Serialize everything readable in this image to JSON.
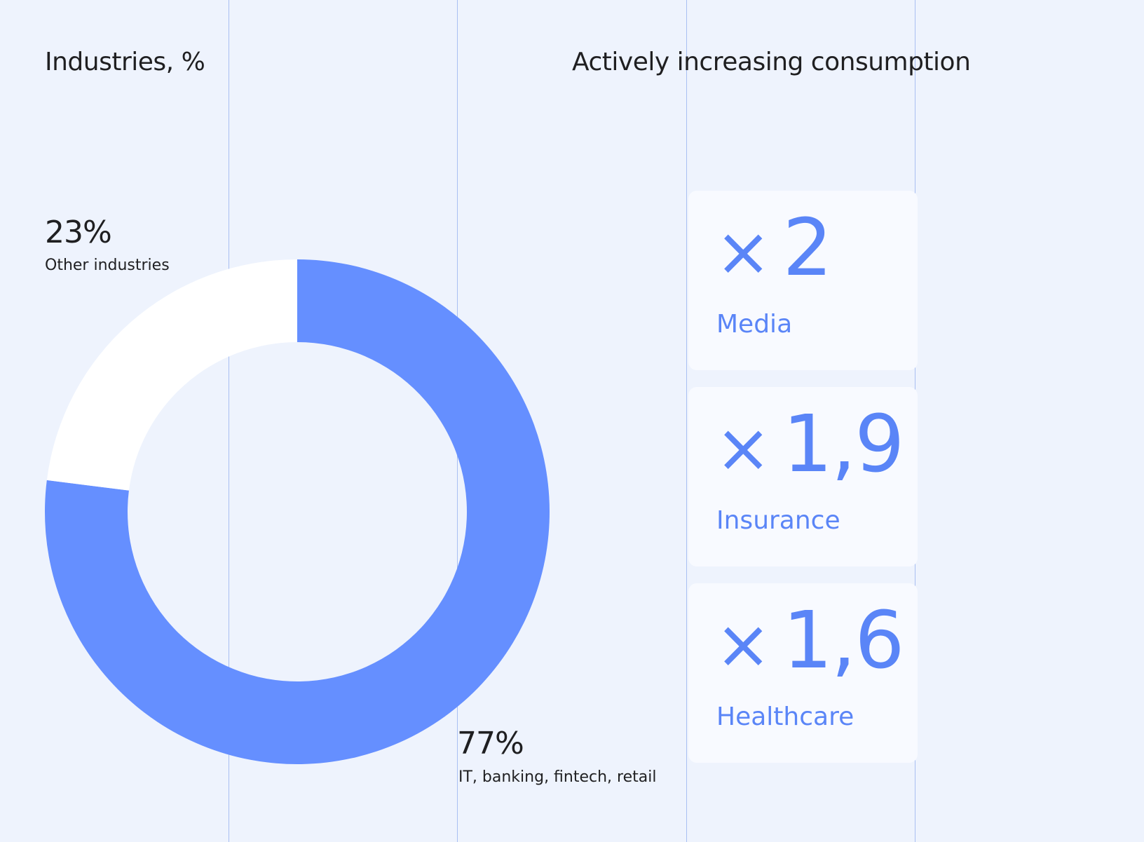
{
  "chart_data": [
    {
      "type": "pie",
      "title": "Industries, %",
      "slices": [
        {
          "label": "IT, banking, fintech, retail",
          "value": 77,
          "value_label": "77%",
          "color": "#658FFF"
        },
        {
          "label": "Other industries",
          "value": 23,
          "value_label": "23%",
          "color": "#FFFFFF"
        }
      ]
    },
    {
      "type": "table",
      "title": "Actively increasing consumption",
      "items": [
        {
          "industry": "Media",
          "multiplier": 2,
          "multiplier_label": "2"
        },
        {
          "industry": "Insurance",
          "multiplier": 1.9,
          "multiplier_label": "1,9"
        },
        {
          "industry": "Healthcare",
          "multiplier": 1.6,
          "multiplier_label": "1,6"
        }
      ]
    }
  ],
  "multiplier_symbol": "×",
  "colors": {
    "background": "#EEF3FD",
    "accent": "#5A85F7",
    "grid": "#A9BFF2",
    "text": "#1F1F21"
  }
}
